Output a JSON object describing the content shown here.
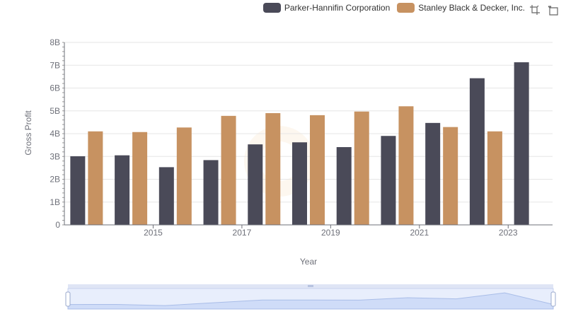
{
  "chart_data": {
    "type": "bar",
    "xlabel": "Year",
    "ylabel": "Gross Profit",
    "ylim": [
      0,
      8000000000
    ],
    "yticks": [
      "0",
      "1B",
      "2B",
      "3B",
      "4B",
      "5B",
      "6B",
      "7B",
      "8B"
    ],
    "x": [
      2014,
      2015,
      2016,
      2017,
      2018,
      2019,
      2020,
      2021,
      2022,
      2023,
      2024
    ],
    "xtick_labels": [
      "2015",
      "2017",
      "2019",
      "2021",
      "2023"
    ],
    "series": [
      {
        "name": "Parker-Hannifin Corporation",
        "color": "#4a4a58",
        "values": [
          3010000000,
          3050000000,
          2530000000,
          2840000000,
          3530000000,
          3620000000,
          3410000000,
          3900000000,
          4470000000,
          6430000000,
          7130000000
        ]
      },
      {
        "name": "Stanley Black & Decker, Inc.",
        "color": "#c79261",
        "values": [
          4100000000,
          4070000000,
          4270000000,
          4780000000,
          4900000000,
          4810000000,
          4970000000,
          5200000000,
          4290000000,
          4100000000,
          null
        ]
      }
    ],
    "grid": true,
    "legend": "top-right"
  },
  "toolbox": {
    "icons": [
      "zoom-icon",
      "restore-icon"
    ]
  }
}
